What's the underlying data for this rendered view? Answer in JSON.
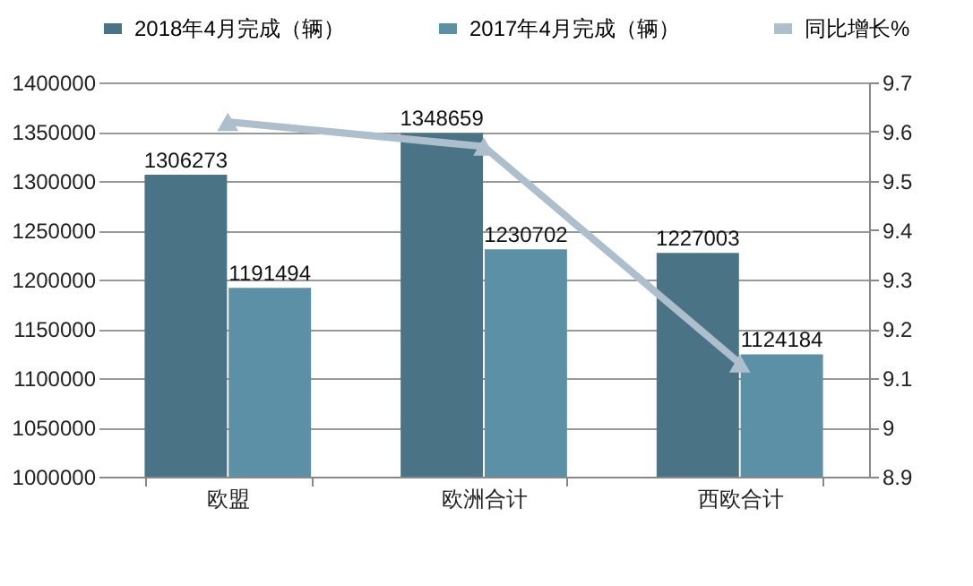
{
  "chart_data": {
    "type": "bar",
    "categories": [
      "欧盟",
      "欧洲合计",
      "西欧合计"
    ],
    "series": [
      {
        "name": "2018年4月完成（辆）",
        "color": "#4a7485",
        "values": [
          1306273,
          1348659,
          1227003
        ],
        "value_labels": [
          "1306273",
          "1348659",
          "1227003"
        ]
      },
      {
        "name": "2017年4月完成（辆）",
        "color": "#5b90a7",
        "values": [
          1191494,
          1230702,
          1124184
        ],
        "value_labels": [
          "1191494",
          "1230702",
          "1124184"
        ]
      },
      {
        "name": "同比增长%",
        "type": "line",
        "axis": "y2",
        "color": "#adbfcc",
        "marker": "triangle",
        "values": [
          9.62,
          9.57,
          9.13
        ]
      }
    ],
    "ylim": [
      1000000,
      1400000
    ],
    "yticks": [
      1000000,
      1050000,
      1100000,
      1150000,
      1200000,
      1250000,
      1300000,
      1350000,
      1400000
    ],
    "y2lim": [
      8.9,
      9.7
    ],
    "y2ticks": [
      8.9,
      9,
      9.1,
      9.2,
      9.3,
      9.4,
      9.5,
      9.6,
      9.7
    ],
    "grid": "y",
    "legend": "top"
  }
}
